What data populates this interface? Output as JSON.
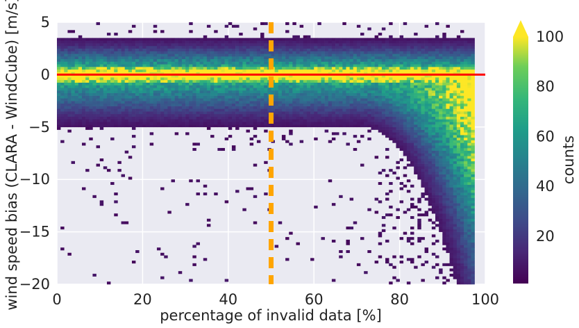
{
  "chart_data": {
    "type": "heatmap",
    "title": "",
    "xlabel": "percentage of invalid data [%]",
    "ylabel": "wind speed bias (CLARA - WindCube) [m/s]",
    "xlim": [
      0,
      100
    ],
    "ylim": [
      -20,
      5
    ],
    "x_ticks": [
      "0",
      "20",
      "40",
      "60",
      "80",
      "100"
    ],
    "y_ticks": [
      "5",
      "0",
      "−5",
      "−10",
      "−15",
      "−20"
    ],
    "grid": true,
    "colormap": "viridis",
    "colorbar": {
      "label": "counts",
      "range": [
        1,
        100
      ],
      "ticks": [
        "20",
        "40",
        "60",
        "80",
        "100"
      ],
      "extend": "max"
    },
    "reference_lines": [
      {
        "orientation": "horizontal",
        "value": 0,
        "color": "#ff0000",
        "style": "solid"
      },
      {
        "orientation": "vertical",
        "value": 50,
        "color": "#ffa500",
        "style": "dashed"
      }
    ],
    "description_of_density": [
      {
        "x_range": [
          0,
          97
        ],
        "bias_center": 0,
        "note": "high counts band near zero bias"
      },
      {
        "x_range": [
          75,
          97
        ],
        "note": "band bends downward toward -20 m/s as invalid data increases"
      }
    ],
    "colors": {
      "background": "#eaeaf2",
      "grid": "#ffffff"
    }
  }
}
